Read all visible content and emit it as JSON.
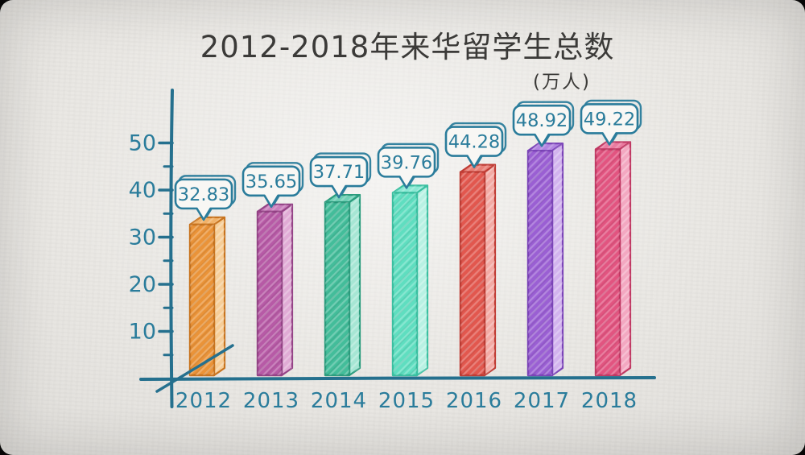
{
  "chart_data": {
    "type": "bar",
    "title": "2012-2018年来华留学生总数",
    "unit": "(万人)",
    "xlabel": "",
    "ylabel": "",
    "categories": [
      "2012",
      "2013",
      "2014",
      "2015",
      "2016",
      "2017",
      "2018"
    ],
    "values": [
      32.83,
      35.65,
      37.71,
      39.76,
      44.28,
      48.92,
      49.22
    ],
    "value_labels": [
      "32.83",
      "35.65",
      "37.71",
      "39.76",
      "44.28",
      "48.92",
      "49.22"
    ],
    "y_major_ticks": [
      "10",
      "20",
      "30",
      "40",
      "50"
    ],
    "y_major_tick_values": [
      10,
      20,
      30,
      40,
      50
    ],
    "y_minor_tick_values": [
      5,
      15,
      25,
      35,
      45
    ],
    "ylim": [
      0,
      55
    ],
    "grid": false,
    "legend": "none",
    "style": "hand-drawn 3d bars with speech-bubble value callouts",
    "colors": {
      "background": "#eae8e4",
      "title_text": "#3b3a38",
      "axis": "#25708e",
      "tick_label": "#2a7c9b",
      "x_label": "#2a7c9b",
      "bubble_stroke": "#2a7c9b",
      "bubble_fill": "#f8f7f4",
      "bubble_text": "#2a7c9b",
      "bars": [
        {
          "name": "orange",
          "front": "#ea9338",
          "side": "#f6cd97",
          "top": "#f1b269",
          "outline": "#c8741f"
        },
        {
          "name": "magenta",
          "front": "#b75aa6",
          "side": "#e0abd5",
          "top": "#ca7fbc",
          "outline": "#944386"
        },
        {
          "name": "teal",
          "front": "#43bd9a",
          "side": "#a6e6d4",
          "top": "#70d1b6",
          "outline": "#2b9c7d"
        },
        {
          "name": "mint",
          "front": "#5fdec0",
          "side": "#b8f1e3",
          "top": "#8ae8d3",
          "outline": "#3abfa0"
        },
        {
          "name": "red",
          "front": "#e2574e",
          "side": "#f3aaa4",
          "top": "#e97f76",
          "outline": "#bf3c34"
        },
        {
          "name": "purple",
          "front": "#9a5fd3",
          "side": "#d2b3ee",
          "top": "#b285e1",
          "outline": "#7b44b8"
        },
        {
          "name": "pink",
          "front": "#e25480",
          "side": "#f3a8c1",
          "top": "#ea7ba0",
          "outline": "#c03963"
        }
      ]
    }
  }
}
